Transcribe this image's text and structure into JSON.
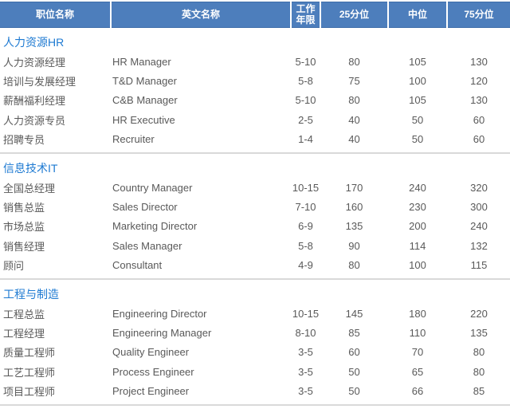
{
  "colors": {
    "header_bg": "#4d7ebc",
    "header_text": "#ffffff",
    "section_title_color": "#1e7ad2",
    "body_text": "#595959",
    "divider_color": "#d9d9d9"
  },
  "chart_data": {
    "type": "table",
    "columns": [
      "职位名称",
      "英文名称",
      "工作年限",
      "25分位",
      "中位",
      "75分位"
    ],
    "sections": [
      {
        "title": "人力资源HR",
        "rows": [
          {
            "position_cn": "人力资源经理",
            "position_en": "HR Manager",
            "years": "5-10",
            "p25": "80",
            "p50": "105",
            "p75": "130"
          },
          {
            "position_cn": "培训与发展经理",
            "position_en": "T&D Manager",
            "years": "5-8",
            "p25": "75",
            "p50": "100",
            "p75": "120"
          },
          {
            "position_cn": "薪酬福利经理",
            "position_en": "C&B Manager",
            "years": "5-10",
            "p25": "80",
            "p50": "105",
            "p75": "130"
          },
          {
            "position_cn": "人力资源专员",
            "position_en": "HR Executive",
            "years": "2-5",
            "p25": "40",
            "p50": "50",
            "p75": "60"
          },
          {
            "position_cn": "招聘专员",
            "position_en": "Recruiter",
            "years": "1-4",
            "p25": "40",
            "p50": "50",
            "p75": "60"
          }
        ]
      },
      {
        "title": "信息技术IT",
        "rows": [
          {
            "position_cn": "全国总经理",
            "position_en": "Country Manager",
            "years": "10-15",
            "p25": "170",
            "p50": "240",
            "p75": "320"
          },
          {
            "position_cn": "销售总监",
            "position_en": "Sales Director",
            "years": "7-10",
            "p25": "160",
            "p50": "230",
            "p75": "300"
          },
          {
            "position_cn": "市场总监",
            "position_en": "Marketing Director",
            "years": "6-9",
            "p25": "135",
            "p50": "200",
            "p75": "240"
          },
          {
            "position_cn": "销售经理",
            "position_en": "Sales Manager",
            "years": "5-8",
            "p25": "90",
            "p50": "114",
            "p75": "132"
          },
          {
            "position_cn": "顾问",
            "position_en": "Consultant",
            "years": "4-9",
            "p25": "80",
            "p50": "100",
            "p75": "115"
          }
        ]
      },
      {
        "title": "工程与制造",
        "rows": [
          {
            "position_cn": "工程总监",
            "position_en": "Engineering Director",
            "years": "10-15",
            "p25": "145",
            "p50": "180",
            "p75": "220"
          },
          {
            "position_cn": "工程经理",
            "position_en": "Engineering Manager",
            "years": "8-10",
            "p25": "85",
            "p50": "110",
            "p75": "135"
          },
          {
            "position_cn": "质量工程师",
            "position_en": "Quality Engineer",
            "years": "3-5",
            "p25": "60",
            "p50": "70",
            "p75": "80"
          },
          {
            "position_cn": "工艺工程师",
            "position_en": "Process Engineer",
            "years": "3-5",
            "p25": "50",
            "p50": "65",
            "p75": "80"
          },
          {
            "position_cn": "项目工程师",
            "position_en": "Project Engineer",
            "years": "3-5",
            "p25": "50",
            "p50": "66",
            "p75": "85"
          }
        ]
      }
    ]
  }
}
